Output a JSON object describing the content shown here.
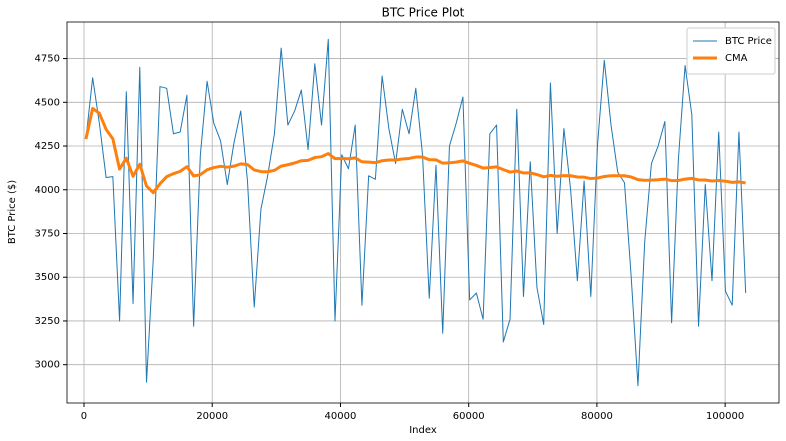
{
  "chart_data": {
    "type": "line",
    "title": "BTC Price Plot",
    "xlabel": "Index",
    "ylabel": "BTC Price ($)",
    "x": [
      300,
      1350,
      2400,
      3450,
      4500,
      5550,
      6600,
      7650,
      8700,
      9750,
      10800,
      11850,
      12900,
      13950,
      15000,
      16050,
      17100,
      18150,
      19200,
      20250,
      21300,
      22350,
      23400,
      24450,
      25500,
      26550,
      27600,
      28650,
      29700,
      30750,
      31800,
      32850,
      33900,
      34950,
      36000,
      37050,
      38100,
      39150,
      40200,
      41250,
      42300,
      43350,
      44400,
      45450,
      46500,
      47550,
      48600,
      49650,
      50700,
      51750,
      52800,
      53850,
      54900,
      55950,
      57000,
      58050,
      59100,
      60150,
      61200,
      62250,
      63300,
      64350,
      65400,
      66450,
      67500,
      68550,
      69600,
      70650,
      71700,
      72750,
      73800,
      74850,
      75900,
      76950,
      78000,
      79050,
      80100,
      81150,
      82200,
      83250,
      84300,
      85350,
      86400,
      87450,
      88500,
      89550,
      90600,
      91650,
      92700,
      93750,
      94800,
      95850,
      96900,
      97950,
      99000,
      100050,
      101100,
      102150,
      103200
    ],
    "series": [
      {
        "name": "BTC Price",
        "color": "#1f77b4",
        "linewidth": 1,
        "values": [
          4290,
          4640,
          4380,
          4070,
          4075,
          3250,
          4560,
          3350,
          4700,
          2900,
          3600,
          4590,
          4580,
          4320,
          4330,
          4540,
          3220,
          4200,
          4620,
          4380,
          4280,
          4030,
          4270,
          4450,
          4050,
          3330,
          3890,
          4080,
          4320,
          4810,
          4370,
          4450,
          4570,
          4230,
          4720,
          4370,
          4860,
          3250,
          4200,
          4120,
          4370,
          3340,
          4080,
          4060,
          4650,
          4350,
          4150,
          4460,
          4320,
          4580,
          4200,
          3380,
          4140,
          3180,
          4250,
          4380,
          4530,
          3370,
          3410,
          3260,
          4320,
          4370,
          3130,
          3260,
          4460,
          3390,
          4160,
          3440,
          3230,
          4610,
          3750,
          4350,
          4000,
          3480,
          4050,
          3390,
          4260,
          4740,
          4370,
          4100,
          4040,
          3500,
          2880,
          3700,
          4150,
          4250,
          4390,
          3240,
          4170,
          4710,
          4430,
          3220,
          4030,
          3480,
          4330,
          3420,
          3340,
          4330,
          3410
        ]
      },
      {
        "name": "CMA",
        "color": "#ff7f0e",
        "linewidth": 3,
        "values": [
          4290,
          4465,
          4437,
          4345,
          4291,
          4118,
          4181,
          4077,
          4146,
          4021,
          3983,
          4034,
          4075,
          4092,
          4105,
          4132,
          4079,
          4086,
          4114,
          4127,
          4134,
          4129,
          4135,
          4148,
          4144,
          4113,
          4104,
          4103,
          4111,
          4135,
          4143,
          4153,
          4166,
          4168,
          4184,
          4189,
          4207,
          4178,
          4179,
          4177,
          4182,
          4160,
          4158,
          4155,
          4166,
          4170,
          4170,
          4176,
          4179,
          4187,
          4187,
          4172,
          4171,
          4152,
          4154,
          4158,
          4165,
          4151,
          4139,
          4124,
          4127,
          4131,
          4115,
          4101,
          4107,
          4096,
          4097,
          4087,
          4074,
          4082,
          4077,
          4081,
          4080,
          4073,
          4072,
          4064,
          4067,
          4076,
          4080,
          4080,
          4080,
          4073,
          4058,
          4054,
          4055,
          4057,
          4061,
          4052,
          4053,
          4061,
          4065,
          4056,
          4056,
          4050,
          4053,
          4049,
          4042,
          4045,
          4039
        ]
      }
    ],
    "xlim": [
      -2650,
      108400
    ],
    "ylim": [
      2781,
      4959
    ],
    "xticks": [
      0,
      20000,
      40000,
      60000,
      80000,
      100000
    ],
    "yticks": [
      3000,
      3250,
      3500,
      3750,
      4000,
      4250,
      4500,
      4750
    ],
    "grid": true,
    "legend": "upper right"
  }
}
